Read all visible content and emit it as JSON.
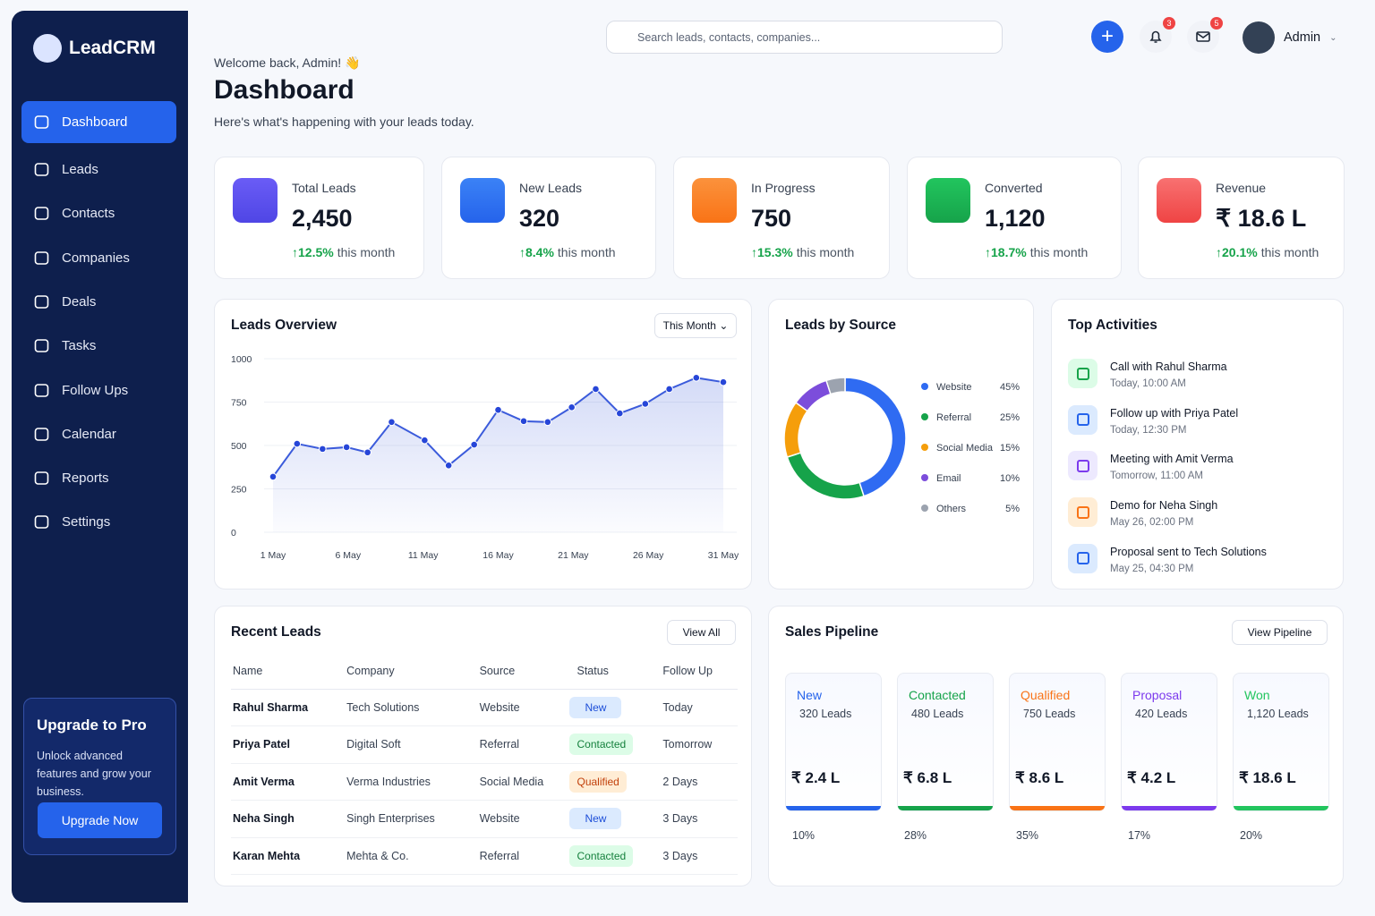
{
  "sidebar": {
    "brand": "LeadCRM",
    "nav": [
      "Dashboard",
      "Leads",
      "Contacts",
      "Companies",
      "Deals",
      "Tasks",
      "Follow Ups",
      "Calendar",
      "Reports",
      "Settings"
    ],
    "upgrade": {
      "title": "Upgrade to Pro",
      "text": "Unlock advanced features and grow your business.",
      "button": "Upgrade Now"
    }
  },
  "header": {
    "search": "Search leads, contacts, companies...",
    "notifications": "3",
    "messages": "5",
    "user": "Admin",
    "welcome": "Welcome back, Admin! 👋",
    "title": "Dashboard",
    "subtitle": "Here's what's happening with your leads today."
  },
  "stats": [
    {
      "label": "Total Leads",
      "value": "2,450",
      "change": "12.5%",
      "suffix": "this month"
    },
    {
      "label": "New Leads",
      "value": "320",
      "change": "8.4%",
      "suffix": "this month"
    },
    {
      "label": "In Progress",
      "value": "750",
      "change": "15.3%",
      "suffix": "this month"
    },
    {
      "label": "Converted",
      "value": "1,120",
      "change": "18.7%",
      "suffix": "this month"
    },
    {
      "label": "Revenue",
      "value": "₹ 18.6 L",
      "change": "20.1%",
      "suffix": "this month"
    }
  ],
  "overview": {
    "title": "Leads Overview",
    "filter": "This Month"
  },
  "source": {
    "title": "Leads by Source"
  },
  "chart_data": [
    {
      "type": "line",
      "color": "#3b5bdb",
      "x": [
        1,
        2.6,
        4.3,
        5.9,
        7.3,
        8.9,
        11.1,
        12.7,
        14.4,
        16.0,
        17.7,
        19.3,
        20.9,
        22.5,
        24.1,
        25.8,
        27.4,
        29.2,
        31
      ],
      "values": [
        320,
        510,
        480,
        490,
        460,
        635,
        530,
        385,
        505,
        705,
        640,
        635,
        720,
        825,
        685,
        740,
        825,
        890,
        865
      ],
      "xlim": [
        1,
        31
      ],
      "xticks": [
        {
          "value": 1,
          "label": "1 May"
        },
        {
          "value": 6,
          "label": "6 May"
        },
        {
          "value": 11,
          "label": "11 May"
        },
        {
          "value": 16,
          "label": "16 May"
        },
        {
          "value": 21,
          "label": "21 May"
        },
        {
          "value": 26,
          "label": "26 May"
        },
        {
          "value": 31,
          "label": "31 May"
        }
      ],
      "ylim": [
        0,
        1000
      ],
      "yticks": [
        0,
        250,
        500,
        750,
        1000
      ],
      "grid": true
    },
    {
      "type": "pie",
      "categories": [
        "Website",
        "Referral",
        "Social Media",
        "Email",
        "Others"
      ],
      "values": [
        45,
        25,
        15,
        10,
        5
      ],
      "value_labels": [
        "45%",
        "25%",
        "15%",
        "10%",
        "5%"
      ],
      "colors": [
        "#2f6bf2",
        "#16a34a",
        "#f59e0b",
        "#7c4ddb",
        "#9ca3af"
      ]
    }
  ],
  "activities": {
    "title": "Top Activities",
    "items": [
      {
        "title": "Call with Rahul Sharma",
        "time": "Today, 10:00 AM"
      },
      {
        "title": "Follow up with Priya Patel",
        "time": "Today, 12:30 PM"
      },
      {
        "title": "Meeting with Amit Verma",
        "time": "Tomorrow, 11:00 AM"
      },
      {
        "title": "Demo for Neha Singh",
        "time": "May 26, 02:00 PM"
      },
      {
        "title": "Proposal sent to Tech Solutions",
        "time": "May 25, 04:30 PM"
      }
    ]
  },
  "table": {
    "title": "Recent Leads",
    "button": "View All",
    "headers": [
      "Name",
      "Company",
      "Source",
      "Status",
      "Follow Up"
    ],
    "rows": [
      [
        "Rahul Sharma",
        "Tech Solutions",
        "Website",
        "New",
        "Today"
      ],
      [
        "Priya Patel",
        "Digital Soft",
        "Referral",
        "Contacted",
        "Tomorrow"
      ],
      [
        "Amit Verma",
        "Verma Industries",
        "Social Media",
        "Qualified",
        "2 Days"
      ],
      [
        "Neha Singh",
        "Singh Enterprises",
        "Website",
        "New",
        "3 Days"
      ],
      [
        "Karan Mehta",
        "Mehta & Co.",
        "Referral",
        "Contacted",
        "3 Days"
      ]
    ]
  },
  "pipeline": {
    "title": "Sales Pipeline",
    "button": "View Pipeline",
    "stages": [
      {
        "name": "New",
        "leads": "320 Leads",
        "value": "₹ 2.4 L",
        "percent": "10%"
      },
      {
        "name": "Contacted",
        "leads": "480 Leads",
        "value": "₹ 6.8 L",
        "percent": "28%"
      },
      {
        "name": "Qualified",
        "leads": "750 Leads",
        "value": "₹ 8.6 L",
        "percent": "35%"
      },
      {
        "name": "Proposal",
        "leads": "420 Leads",
        "value": "₹ 4.2 L",
        "percent": "17%"
      },
      {
        "name": "Won",
        "leads": "1,120 Leads",
        "value": "₹ 18.6 L",
        "percent": "20%"
      }
    ]
  }
}
